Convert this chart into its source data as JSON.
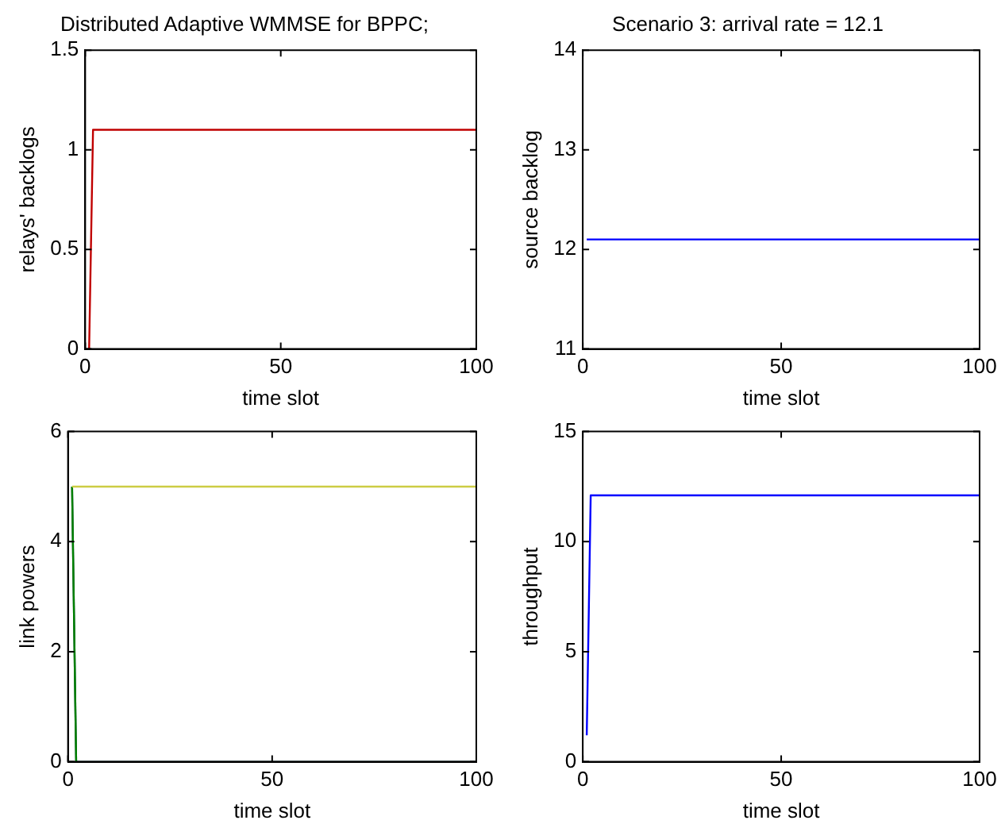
{
  "chart_data": [
    {
      "type": "line",
      "title": "Distributed Adaptive WMMSE for BPPC;",
      "xlabel": "time slot",
      "ylabel": "relays' backlogs",
      "xlim": [
        0,
        100
      ],
      "xticks": [
        0,
        50,
        100
      ],
      "ylim": [
        0,
        1.5
      ],
      "yticks": [
        0,
        0.5,
        1,
        1.5
      ],
      "series": [
        {
          "color": "#c00000",
          "x": [
            1,
            2,
            100
          ],
          "values": [
            0,
            1.1,
            1.1
          ]
        }
      ]
    },
    {
      "type": "line",
      "title": "Scenario 3: arrival rate = 12.1",
      "xlabel": "time slot",
      "ylabel": "source backlog",
      "xlim": [
        0,
        100
      ],
      "xticks": [
        0,
        50,
        100
      ],
      "ylim": [
        11,
        14
      ],
      "yticks": [
        11,
        12,
        13,
        14
      ],
      "series": [
        {
          "color": "#0000ff",
          "x": [
            1,
            100
          ],
          "values": [
            12.1,
            12.1
          ]
        }
      ]
    },
    {
      "type": "line",
      "xlabel": "time slot",
      "ylabel": "link powers",
      "xlim": [
        0,
        100
      ],
      "xticks": [
        0,
        50,
        100
      ],
      "ylim": [
        0,
        6
      ],
      "yticks": [
        0,
        2,
        4,
        6
      ],
      "series": [
        {
          "color": "#cccc44",
          "x": [
            1,
            100
          ],
          "values": [
            5,
            5
          ]
        },
        {
          "color": "#008000",
          "x": [
            1,
            2
          ],
          "values": [
            5,
            0
          ]
        },
        {
          "color": "#1f4f4f",
          "x": [
            1,
            2,
            100
          ],
          "values": [
            5,
            0,
            0
          ]
        }
      ]
    },
    {
      "type": "line",
      "xlabel": "time slot",
      "ylabel": "throughput",
      "xlim": [
        0,
        100
      ],
      "xticks": [
        0,
        50,
        100
      ],
      "ylim": [
        0,
        15
      ],
      "yticks": [
        0,
        5,
        10,
        15
      ],
      "series": [
        {
          "color": "#0000ff",
          "x": [
            1,
            2,
            100
          ],
          "values": [
            1.2,
            12.1,
            12.1
          ]
        }
      ]
    }
  ]
}
